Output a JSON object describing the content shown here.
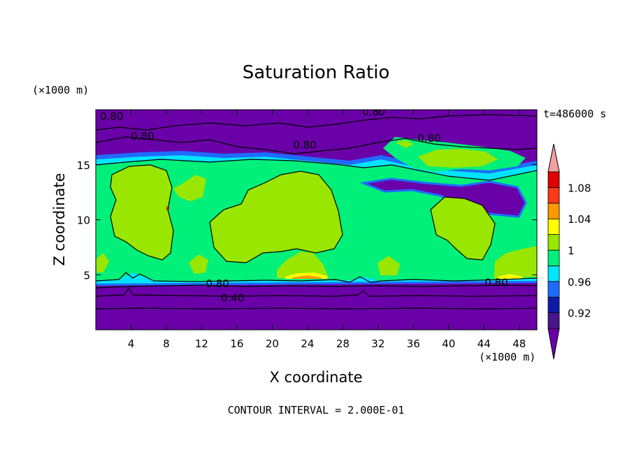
{
  "chart_data": {
    "type": "heatmap",
    "title": "Saturation Ratio",
    "xlabel": "X coordinate",
    "ylabel": "Z coordinate",
    "x_unit": "(×1000 m)",
    "y_unit": "(×1000 m)",
    "xlim": [
      0,
      50
    ],
    "ylim": [
      0,
      20
    ],
    "x_ticks": [
      4,
      8,
      12,
      16,
      20,
      24,
      28,
      32,
      36,
      40,
      44,
      48
    ],
    "y_ticks": [
      5,
      10,
      15
    ],
    "time_label": "t=486000 s",
    "footer": "CONTOUR INTERVAL = 2.000E-01",
    "colorbar": {
      "levels": [
        0.9,
        0.92,
        0.94,
        0.96,
        0.98,
        1.0,
        1.02,
        1.04,
        1.06,
        1.08,
        1.1
      ],
      "tick_labels": [
        "0.92",
        "0.96",
        "1",
        "1.04",
        "1.08"
      ],
      "tick_values": [
        0.92,
        0.96,
        1.0,
        1.04,
        1.08
      ],
      "band_colors": [
        "#4a148c",
        "#0d1aa8",
        "#1e6cff",
        "#00e5ff",
        "#00f07a",
        "#99e600",
        "#ffff00",
        "#ff9a00",
        "#ff3a1a",
        "#e00000"
      ],
      "under_color": "#6a00a8",
      "over_color": "#f5a0a0"
    },
    "contour_labels": [
      {
        "text": "0.80",
        "x": 1.8,
        "y": 19.4
      },
      {
        "text": "0.80",
        "x": 5.3,
        "y": 17.6
      },
      {
        "text": "0.80",
        "x": 31.5,
        "y": 19.8
      },
      {
        "text": "0.80",
        "x": 23.7,
        "y": 16.8
      },
      {
        "text": "0.80",
        "x": 37.8,
        "y": 17.4
      },
      {
        "text": "0.80",
        "x": 13.8,
        "y": 4.2
      },
      {
        "text": "0.80",
        "x": 45.4,
        "y": 4.3
      },
      {
        "text": "0.40",
        "x": 15.5,
        "y": 2.9
      }
    ]
  }
}
